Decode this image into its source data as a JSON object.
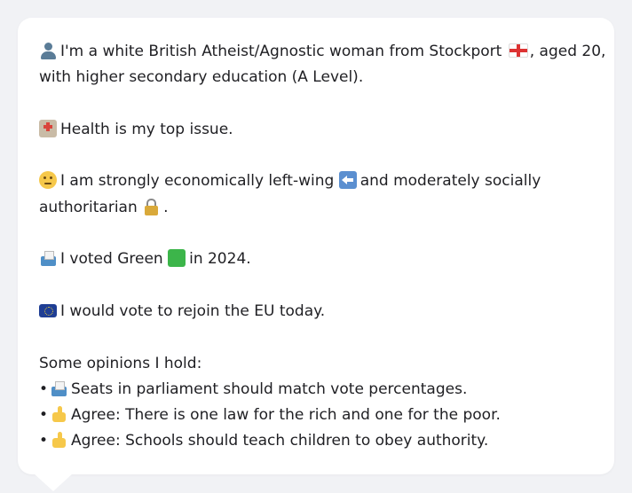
{
  "profile": {
    "intro_part1": "I'm a white British Atheist/Agnostic woman from Stockport",
    "intro_part2": ", aged 20,",
    "intro_line2": "with higher secondary education (A Level).",
    "health": "Health is my top issue.",
    "economic_part1": "I am strongly economically left-wing",
    "economic_part2": "and moderately socially",
    "authoritarian_word": "authoritarian",
    "authoritarian_end": ".",
    "voted_part1": "I voted Green",
    "voted_part2": "in 2024.",
    "eu": "I would vote to rejoin the EU today.",
    "opinions_heading": "Some opinions I hold:",
    "opinions": [
      {
        "bullet": "•",
        "icon": "ballot-box-icon",
        "text": "Seats in parliament should match vote percentages."
      },
      {
        "bullet": "•",
        "icon": "thumbs-up-icon",
        "text": "Agree: There is one law for the rich and one for the poor."
      },
      {
        "bullet": "•",
        "icon": "thumbs-up-icon",
        "text": "Agree: Schools should teach children to obey authority."
      }
    ]
  },
  "icons": {
    "person": "person-icon",
    "england_flag": "england-flag-icon",
    "hospital": "hospital-icon",
    "thinking": "thinking-face-icon",
    "left_arrow": "left-arrow-icon",
    "lock": "lock-icon",
    "ballot": "ballot-box-icon",
    "green_square": "green-square-icon",
    "eu_flag": "eu-flag-icon",
    "thumbs_up": "thumbs-up-icon"
  },
  "colors": {
    "background": "#f1f2f5",
    "card": "#ffffff",
    "text": "#1f1f23"
  }
}
